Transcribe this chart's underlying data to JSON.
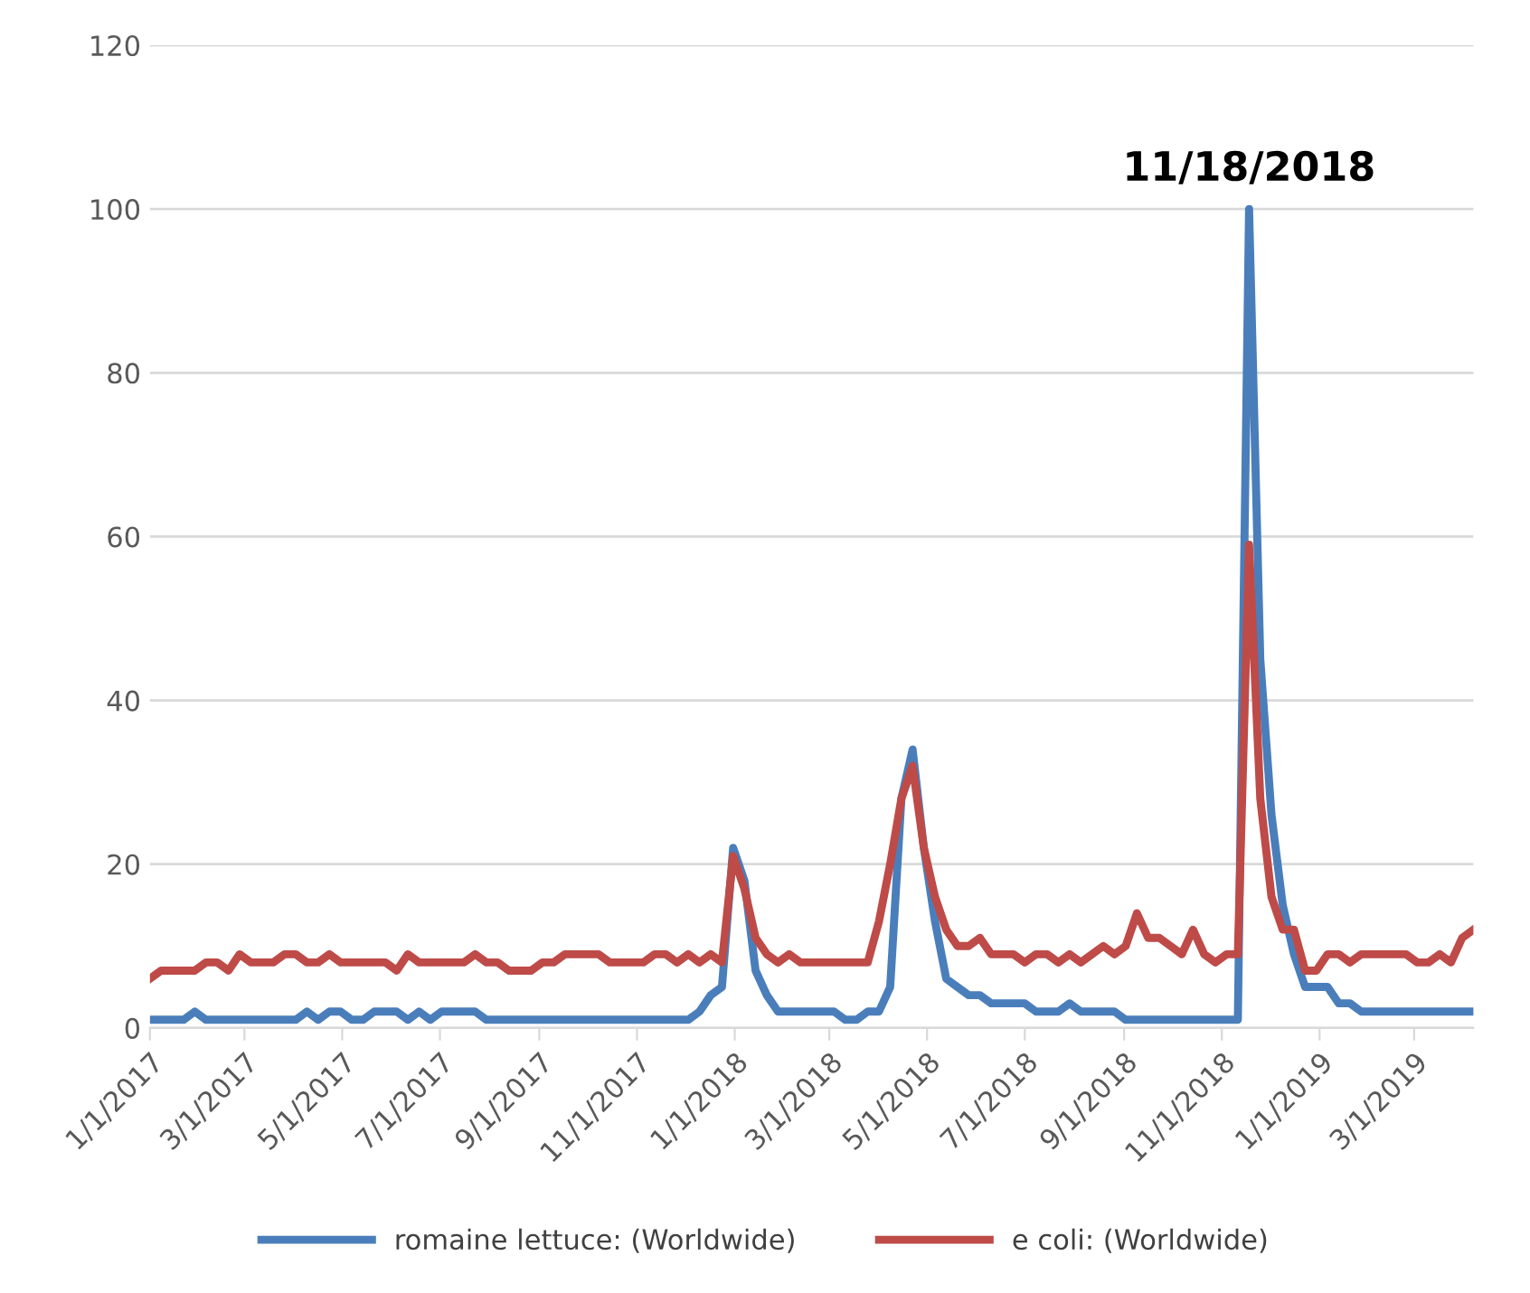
{
  "chart_data": {
    "type": "line",
    "x": [
      "2017-01-01",
      "2017-01-08",
      "2017-01-15",
      "2017-01-22",
      "2017-01-29",
      "2017-02-05",
      "2017-02-12",
      "2017-02-19",
      "2017-02-26",
      "2017-03-05",
      "2017-03-12",
      "2017-03-19",
      "2017-03-26",
      "2017-04-02",
      "2017-04-09",
      "2017-04-16",
      "2017-04-23",
      "2017-04-30",
      "2017-05-07",
      "2017-05-14",
      "2017-05-21",
      "2017-05-28",
      "2017-06-04",
      "2017-06-11",
      "2017-06-18",
      "2017-06-25",
      "2017-07-02",
      "2017-07-09",
      "2017-07-16",
      "2017-07-23",
      "2017-07-30",
      "2017-08-06",
      "2017-08-13",
      "2017-08-20",
      "2017-08-27",
      "2017-09-03",
      "2017-09-10",
      "2017-09-17",
      "2017-09-24",
      "2017-10-01",
      "2017-10-08",
      "2017-10-15",
      "2017-10-22",
      "2017-10-29",
      "2017-11-05",
      "2017-11-12",
      "2017-11-19",
      "2017-11-26",
      "2017-12-03",
      "2017-12-10",
      "2017-12-17",
      "2017-12-24",
      "2017-12-31",
      "2018-01-07",
      "2018-01-14",
      "2018-01-21",
      "2018-01-28",
      "2018-02-04",
      "2018-02-11",
      "2018-02-18",
      "2018-02-25",
      "2018-03-04",
      "2018-03-11",
      "2018-03-18",
      "2018-03-25",
      "2018-04-01",
      "2018-04-08",
      "2018-04-15",
      "2018-04-22",
      "2018-04-29",
      "2018-05-06",
      "2018-05-13",
      "2018-05-20",
      "2018-05-27",
      "2018-06-03",
      "2018-06-10",
      "2018-06-17",
      "2018-06-24",
      "2018-07-01",
      "2018-07-08",
      "2018-07-15",
      "2018-07-22",
      "2018-07-29",
      "2018-08-05",
      "2018-08-12",
      "2018-08-19",
      "2018-08-26",
      "2018-09-02",
      "2018-09-09",
      "2018-09-16",
      "2018-09-23",
      "2018-09-30",
      "2018-10-07",
      "2018-10-14",
      "2018-10-21",
      "2018-10-28",
      "2018-11-04",
      "2018-11-11",
      "2018-11-18",
      "2018-11-25",
      "2018-12-02",
      "2018-12-09",
      "2018-12-16",
      "2018-12-23",
      "2018-12-30",
      "2019-01-06",
      "2019-01-13",
      "2019-01-20",
      "2019-01-27",
      "2019-02-03",
      "2019-02-10",
      "2019-02-17",
      "2019-02-24",
      "2019-03-03",
      "2019-03-10",
      "2019-03-17",
      "2019-03-24",
      "2019-03-31",
      "2019-04-07"
    ],
    "series": [
      {
        "name": "romaine lettuce: (Worldwide)",
        "color": "#4a7ebb",
        "values": [
          1,
          1,
          1,
          1,
          2,
          1,
          1,
          1,
          1,
          1,
          1,
          1,
          1,
          1,
          2,
          1,
          2,
          2,
          1,
          1,
          2,
          2,
          2,
          1,
          2,
          1,
          2,
          2,
          2,
          2,
          1,
          1,
          1,
          1,
          1,
          1,
          1,
          1,
          1,
          1,
          1,
          1,
          1,
          1,
          1,
          1,
          1,
          1,
          1,
          2,
          4,
          5,
          22,
          18,
          7,
          4,
          2,
          2,
          2,
          2,
          2,
          2,
          1,
          1,
          2,
          2,
          5,
          28,
          34,
          22,
          13,
          6,
          5,
          4,
          4,
          3,
          3,
          3,
          3,
          2,
          2,
          2,
          3,
          2,
          2,
          2,
          2,
          1,
          1,
          1,
          1,
          1,
          1,
          1,
          1,
          1,
          1,
          1,
          100,
          45,
          26,
          15,
          9,
          5,
          5,
          5,
          3,
          3,
          2,
          2,
          2,
          2,
          2,
          2,
          2,
          2,
          2,
          2,
          2
        ]
      },
      {
        "name": "e coli: (Worldwide)",
        "color": "#be4b48",
        "values": [
          6,
          7,
          7,
          7,
          7,
          8,
          8,
          7,
          9,
          8,
          8,
          8,
          9,
          9,
          8,
          8,
          9,
          8,
          8,
          8,
          8,
          8,
          7,
          9,
          8,
          8,
          8,
          8,
          8,
          9,
          8,
          8,
          7,
          7,
          7,
          8,
          8,
          9,
          9,
          9,
          9,
          8,
          8,
          8,
          8,
          9,
          9,
          8,
          9,
          8,
          9,
          8,
          21,
          17,
          11,
          9,
          8,
          9,
          8,
          8,
          8,
          8,
          8,
          8,
          8,
          13,
          20,
          28,
          32,
          22,
          16,
          12,
          10,
          10,
          11,
          9,
          9,
          9,
          8,
          9,
          9,
          8,
          9,
          8,
          9,
          10,
          9,
          10,
          14,
          11,
          11,
          10,
          9,
          12,
          9,
          8,
          9,
          9,
          59,
          28,
          16,
          12,
          12,
          7,
          7,
          9,
          9,
          8,
          9,
          9,
          9,
          9,
          9,
          8,
          8,
          9,
          8,
          11,
          12
        ]
      }
    ],
    "xlim": [
      "2017-01-01",
      "2019-04-07"
    ],
    "xticks": [
      {
        "value": "2017-01-01",
        "label": "1/1/2017"
      },
      {
        "value": "2017-03-01",
        "label": "3/1/2017"
      },
      {
        "value": "2017-05-01",
        "label": "5/1/2017"
      },
      {
        "value": "2017-07-01",
        "label": "7/1/2017"
      },
      {
        "value": "2017-09-01",
        "label": "9/1/2017"
      },
      {
        "value": "2017-11-01",
        "label": "11/1/2017"
      },
      {
        "value": "2018-01-01",
        "label": "1/1/2018"
      },
      {
        "value": "2018-03-01",
        "label": "3/1/2018"
      },
      {
        "value": "2018-05-01",
        "label": "5/1/2018"
      },
      {
        "value": "2018-07-01",
        "label": "7/1/2018"
      },
      {
        "value": "2018-09-01",
        "label": "9/1/2018"
      },
      {
        "value": "2018-11-01",
        "label": "11/1/2018"
      },
      {
        "value": "2019-01-01",
        "label": "1/1/2019"
      },
      {
        "value": "2019-03-01",
        "label": "3/1/2019"
      }
    ],
    "ylim": [
      0,
      120
    ],
    "yticks": [
      0,
      20,
      40,
      60,
      80,
      100,
      120
    ],
    "annotations": [
      {
        "text": "11/18/2018",
        "x": "2018-11-18",
        "y": 100
      }
    ],
    "grid": "y",
    "legend": "bottom",
    "marker": "none",
    "line_style": "solid"
  }
}
